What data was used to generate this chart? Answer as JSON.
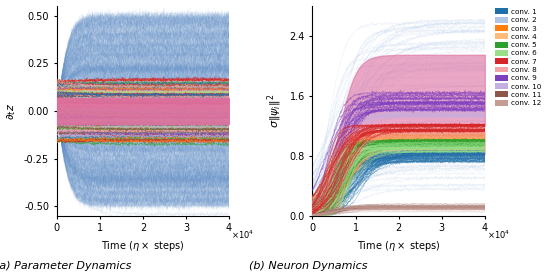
{
  "left_ylabel": "$\\partial_t z$",
  "left_xlabel": "Time ($\\eta \\times$ steps)",
  "left_xlim": [
    0,
    40000
  ],
  "left_ylim": [
    -0.55,
    0.55
  ],
  "left_yticks": [
    -0.5,
    -0.25,
    0.0,
    0.25,
    0.5
  ],
  "left_xticks": [
    0,
    10000,
    20000,
    30000,
    40000
  ],
  "left_xticklabels": [
    "0",
    "1",
    "2",
    "3",
    "4"
  ],
  "right_ylabel": "$\\sigma\\|\\psi_i\\|^2$",
  "right_xlabel": "Time ($\\eta \\times$ steps)",
  "right_xlim": [
    0,
    40000
  ],
  "right_ylim": [
    0.0,
    2.8
  ],
  "right_yticks": [
    0.0,
    0.8,
    1.6,
    2.4
  ],
  "right_xticks": [
    0,
    10000,
    20000,
    30000,
    40000
  ],
  "right_xticklabels": [
    "0",
    "1",
    "2",
    "3",
    "4"
  ],
  "caption_left": "(a) Parameter Dynamics",
  "caption_right": "(b) Neuron Dynamics",
  "legend_labels": [
    "conv. 1",
    "conv. 2",
    "conv. 3",
    "conv. 4",
    "conv. 5",
    "conv. 6",
    "conv. 7",
    "conv. 8",
    "conv. 9",
    "conv. 10",
    "conv. 11",
    "conv. 12"
  ],
  "legend_colors": [
    "#1f6fa8",
    "#aec6e8",
    "#ff7f0e",
    "#ffbb78",
    "#2ca02c",
    "#98df8a",
    "#d62728",
    "#f4a4a4",
    "#7f3fbf",
    "#c5aee0",
    "#8c564b",
    "#c49c94"
  ],
  "blue_line_color": "#6090cc",
  "pink_fill_color": "#df6fa0",
  "background_color": "#ffffff"
}
